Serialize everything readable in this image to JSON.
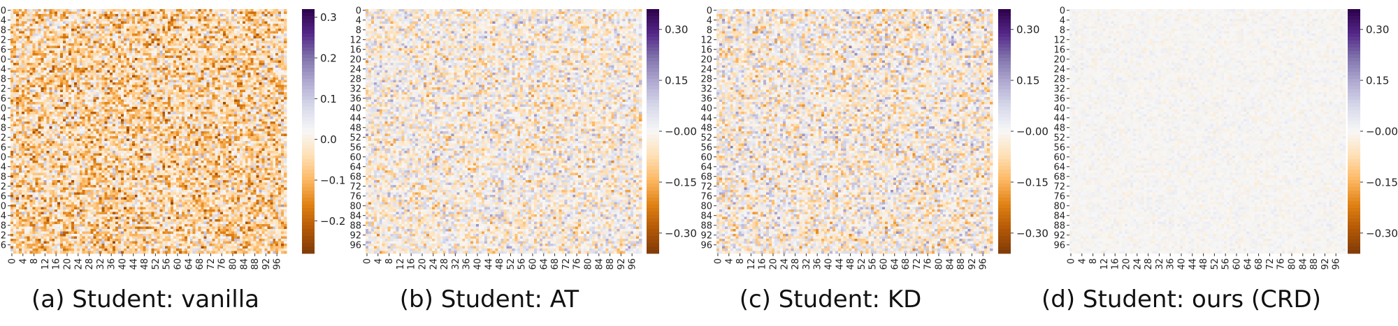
{
  "chart_data": [
    {
      "type": "heatmap",
      "caption": "(a) Student: vanilla",
      "rows": 100,
      "cols": 100,
      "tick_labels": [
        "0",
        "4",
        "8",
        "12",
        "16",
        "20",
        "24",
        "28",
        "32",
        "36",
        "40",
        "44",
        "48",
        "52",
        "56",
        "60",
        "64",
        "68",
        "72",
        "76",
        "80",
        "84",
        "88",
        "92",
        "96"
      ],
      "value_range": [
        -0.28,
        0.32
      ],
      "colorbar_ticks": [
        "0.3",
        "0.2",
        "0.1",
        "0.0",
        "−0.1",
        "−0.2"
      ],
      "colorbar_values": [
        0.3,
        0.2,
        0.1,
        0.0,
        -0.1,
        -0.2
      ],
      "colormap": "PuOr",
      "value_spread": 0.13,
      "value_bias": -0.05
    },
    {
      "type": "heatmap",
      "caption": "(b) Student: AT",
      "rows": 100,
      "cols": 100,
      "tick_labels": [
        "0",
        "4",
        "8",
        "12",
        "16",
        "20",
        "24",
        "28",
        "32",
        "36",
        "40",
        "44",
        "48",
        "52",
        "56",
        "60",
        "64",
        "68",
        "72",
        "76",
        "80",
        "84",
        "88",
        "92",
        "96"
      ],
      "value_range": [
        -0.36,
        0.36
      ],
      "colorbar_ticks": [
        "0.30",
        "0.15",
        "−0.00",
        "−0.15",
        "−0.30"
      ],
      "colorbar_values": [
        0.3,
        0.15,
        0.0,
        -0.15,
        -0.3
      ],
      "colormap": "PuOr",
      "value_spread": 0.12,
      "value_bias": -0.01
    },
    {
      "type": "heatmap",
      "caption": "(c) Student: KD",
      "rows": 100,
      "cols": 100,
      "tick_labels": [
        "0",
        "4",
        "8",
        "12",
        "16",
        "20",
        "24",
        "28",
        "32",
        "36",
        "40",
        "44",
        "48",
        "52",
        "56",
        "60",
        "64",
        "68",
        "72",
        "76",
        "80",
        "84",
        "88",
        "92",
        "96"
      ],
      "value_range": [
        -0.36,
        0.36
      ],
      "colorbar_ticks": [
        "0.30",
        "0.15",
        "−0.00",
        "−0.15",
        "−0.30"
      ],
      "colorbar_values": [
        0.3,
        0.15,
        0.0,
        -0.15,
        -0.3
      ],
      "colormap": "PuOr",
      "value_spread": 0.13,
      "value_bias": -0.01
    },
    {
      "type": "heatmap",
      "caption": "(d) Student: ours (CRD)",
      "rows": 100,
      "cols": 100,
      "tick_labels": [
        "0",
        "4",
        "8",
        "12",
        "16",
        "20",
        "24",
        "28",
        "32",
        "36",
        "40",
        "44",
        "48",
        "52",
        "56",
        "60",
        "64",
        "68",
        "72",
        "76",
        "80",
        "84",
        "88",
        "92",
        "96"
      ],
      "value_range": [
        -0.36,
        0.36
      ],
      "colorbar_ticks": [
        "0.30",
        "0.15",
        "−0.00",
        "−0.15",
        "−0.30"
      ],
      "colorbar_values": [
        0.3,
        0.15,
        0.0,
        -0.15,
        -0.3
      ],
      "colormap": "PuOr",
      "value_spread": 0.025,
      "value_bias": 0.0
    }
  ]
}
